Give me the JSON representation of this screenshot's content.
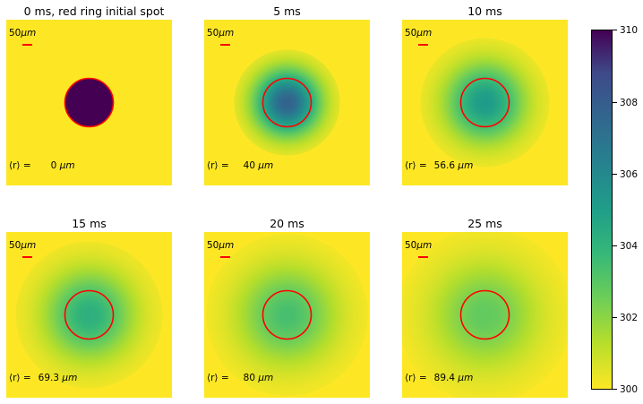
{
  "colors": {
    "ring": "#ff0000",
    "background_field": "#fde725",
    "spot_max": "#440154"
  },
  "panels": [
    {
      "title": "0 ms, red ring initial spot",
      "scalebar": "50",
      "scalebar_unit": "μm",
      "radius_symbol": "⟨r⟩ =",
      "radius_value": "0",
      "radius_unit": "μm",
      "peak": 310.0,
      "spread": 0.0
    },
    {
      "title": "5 ms",
      "scalebar": "50",
      "scalebar_unit": "μm",
      "radius_symbol": "⟨r⟩ =",
      "radius_value": "40",
      "radius_unit": "μm",
      "peak": 307.8,
      "spread": 40
    },
    {
      "title": "10 ms",
      "scalebar": "50",
      "scalebar_unit": "μm",
      "radius_symbol": "⟨r⟩ =",
      "radius_value": "56.6",
      "radius_unit": "μm",
      "peak": 305.2,
      "spread": 56.6
    },
    {
      "title": "15 ms",
      "scalebar": "50",
      "scalebar_unit": "μm",
      "radius_symbol": "⟨r⟩ =",
      "radius_value": "69.3",
      "radius_unit": "μm",
      "peak": 304.2,
      "spread": 69.3
    },
    {
      "title": "20 ms",
      "scalebar": "50",
      "scalebar_unit": "μm",
      "radius_symbol": "⟨r⟩ =",
      "radius_value": "80",
      "radius_unit": "μm",
      "peak": 303.4,
      "spread": 80
    },
    {
      "title": "25 ms",
      "scalebar": "50",
      "scalebar_unit": "μm",
      "radius_symbol": "⟨r⟩ =",
      "radius_value": "89.4",
      "radius_unit": "μm",
      "peak": 302.8,
      "spread": 89.4
    }
  ],
  "colorbar": {
    "min": 300,
    "max": 310,
    "ticks": [
      "300",
      "302",
      "304",
      "306",
      "308",
      "310"
    ]
  }
}
